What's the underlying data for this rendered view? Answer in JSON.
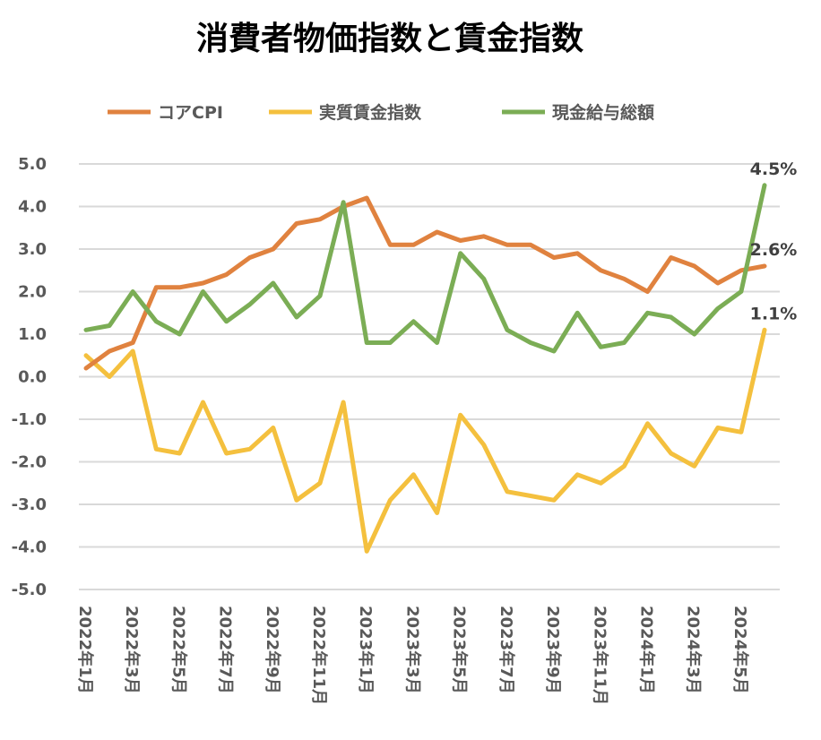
{
  "chart_data": {
    "type": "line",
    "title": "消費者物価指数と賃金指数",
    "xlabel": "",
    "ylabel": "",
    "ylim": [
      -5.0,
      5.0
    ],
    "yticks": [
      "5.0",
      "4.0",
      "3.0",
      "2.0",
      "1.0",
      "0.0",
      "-1.0",
      "-2.0",
      "-3.0",
      "-4.0",
      "-5.0"
    ],
    "grid": true,
    "legend_position": "top",
    "x": [
      "2022年1月",
      "2022年2月",
      "2022年3月",
      "2022年4月",
      "2022年5月",
      "2022年6月",
      "2022年7月",
      "2022年8月",
      "2022年9月",
      "2022年10月",
      "2022年11月",
      "2022年12月",
      "2023年1月",
      "2023年2月",
      "2023年3月",
      "2023年4月",
      "2023年5月",
      "2023年6月",
      "2023年7月",
      "2023年8月",
      "2023年9月",
      "2023年10月",
      "2023年11月",
      "2023年12月",
      "2024年1月",
      "2024年2月",
      "2024年3月",
      "2024年4月",
      "2024年5月",
      "2024年6月"
    ],
    "xtick_labels": [
      "2022年1月",
      "2022年3月",
      "2022年5月",
      "2022年7月",
      "2022年9月",
      "2022年11月",
      "2023年1月",
      "2023年3月",
      "2023年5月",
      "2023年7月",
      "2023年9月",
      "2023年11月",
      "2024年1月",
      "2024年3月",
      "2024年5月"
    ],
    "series": [
      {
        "name": "コアCPI",
        "color": "#E0823F",
        "values": [
          0.2,
          0.6,
          0.8,
          2.1,
          2.1,
          2.2,
          2.4,
          2.8,
          3.0,
          3.6,
          3.7,
          4.0,
          4.2,
          3.1,
          3.1,
          3.4,
          3.2,
          3.3,
          3.1,
          3.1,
          2.8,
          2.9,
          2.5,
          2.3,
          2.0,
          2.8,
          2.6,
          2.2,
          2.5,
          2.6
        ],
        "end_label": "2.6%"
      },
      {
        "name": "実質賃金指数",
        "color": "#F4C03E",
        "values": [
          0.5,
          0.0,
          0.6,
          -1.7,
          -1.8,
          -0.6,
          -1.8,
          -1.7,
          -1.2,
          -2.9,
          -2.5,
          -0.6,
          -4.1,
          -2.9,
          -2.3,
          -3.2,
          -0.9,
          -1.6,
          -2.7,
          -2.8,
          -2.9,
          -2.3,
          -2.5,
          -2.1,
          -1.1,
          -1.8,
          -2.1,
          -1.2,
          -1.3,
          1.1
        ],
        "end_label": "1.1%"
      },
      {
        "name": "現金給与総額",
        "color": "#7BAD55",
        "values": [
          1.1,
          1.2,
          2.0,
          1.3,
          1.0,
          2.0,
          1.3,
          1.7,
          2.2,
          1.4,
          1.9,
          4.1,
          0.8,
          0.8,
          1.3,
          0.8,
          2.9,
          2.3,
          1.1,
          0.8,
          0.6,
          1.5,
          0.7,
          0.8,
          1.5,
          1.4,
          1.0,
          1.6,
          2.0,
          4.5
        ],
        "end_label": "4.5%"
      }
    ]
  }
}
